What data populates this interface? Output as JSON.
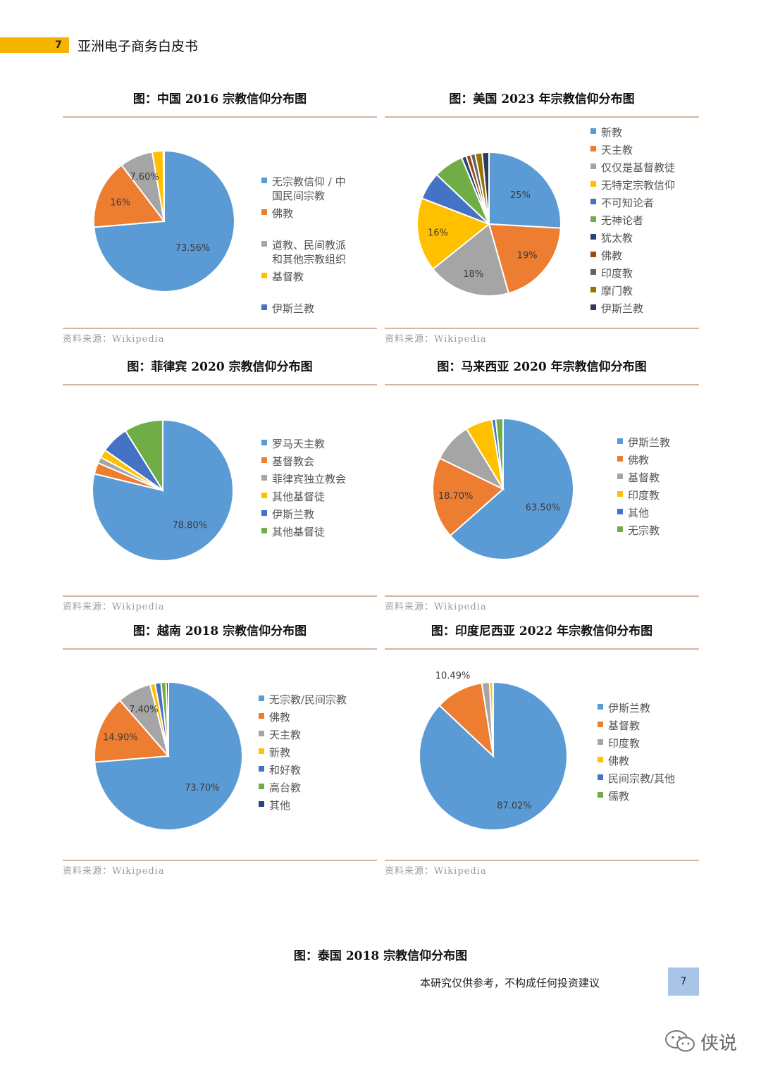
{
  "header": {
    "page_number": "7",
    "title": "亚洲电子商务白皮书"
  },
  "source_label": "资料来源：Wikipedia",
  "palette": [
    "#5b9bd5",
    "#ed7d31",
    "#a5a5a5",
    "#ffc000",
    "#4472c4",
    "#70ad47",
    "#264478",
    "#9e480e",
    "#636363",
    "#997300",
    "#2f3b5c"
  ],
  "chart_data": [
    {
      "type": "pie",
      "title": "图：中国 2016 宗教信仰分布图",
      "labels": [
        "无宗教信仰 / 中\n国民间宗教",
        "佛教",
        "道教、民间教派\n和其他宗教组织",
        "基督教",
        "伊斯兰教"
      ],
      "values": [
        73.56,
        16,
        7.6,
        2.53,
        0.2
      ],
      "data_labels": [
        "73.56%",
        "16%",
        "7.60%",
        "",
        ""
      ],
      "legend": "right"
    },
    {
      "type": "pie",
      "title": "图：美国 2023 年宗教信仰分布图",
      "labels": [
        "新教",
        "天主教",
        "仅仅是基督教徒",
        "无特定宗教信仰",
        "不可知论者",
        "无神论者",
        "犹太教",
        "佛教",
        "印度教",
        "摩门教",
        "伊斯兰教"
      ],
      "values": [
        25,
        19,
        18,
        16,
        6,
        6.5,
        1,
        1,
        1,
        1.5,
        1.5
      ],
      "data_labels": [
        "25%",
        "19%",
        "18%",
        "16%",
        "",
        "",
        "",
        "",
        "",
        "",
        ""
      ],
      "legend": "right"
    },
    {
      "type": "pie",
      "title": "图：菲律宾 2020 宗教信仰分布图",
      "labels": [
        "罗马天主教",
        "基督教会",
        "菲律宾独立教会",
        "其他基督徒",
        "伊斯兰教",
        "其他基督徒"
      ],
      "values": [
        78.8,
        2.6,
        1.4,
        1.9,
        6.4,
        8.9
      ],
      "data_labels": [
        "78.80%",
        "",
        "",
        "",
        "",
        ""
      ],
      "legend": "right"
    },
    {
      "type": "pie",
      "title": "图：马来西亚 2020 年宗教信仰分布图",
      "labels": [
        "伊斯兰教",
        "佛教",
        "基督教",
        "印度教",
        "其他",
        "无宗教"
      ],
      "values": [
        63.5,
        18.7,
        9.1,
        6.1,
        0.9,
        1.7
      ],
      "data_labels": [
        "63.50%",
        "18.70%",
        "",
        "",
        "",
        ""
      ],
      "legend": "right"
    },
    {
      "type": "pie",
      "title": "图：越南 2018 宗教信仰分布图",
      "labels": [
        "无宗教/民间宗教",
        "佛教",
        "天主教",
        "新教",
        "和好教",
        "高台教",
        "其他"
      ],
      "values": [
        73.7,
        14.9,
        7.4,
        1.1,
        1.3,
        1.1,
        0.5
      ],
      "data_labels": [
        "73.70%",
        "14.90%",
        "7.40%",
        "",
        "",
        "",
        ""
      ],
      "legend": "right"
    },
    {
      "type": "pie",
      "title": "图：印度尼西亚 2022 年宗教信仰分布图",
      "labels": [
        "伊斯兰教",
        "基督教",
        "印度教",
        "佛教",
        "民间宗教/其他",
        "儒教"
      ],
      "values": [
        87.02,
        10.49,
        1.69,
        0.72,
        0.05,
        0.03
      ],
      "data_labels": [
        "87.02%",
        "10.49%",
        "",
        "",
        "",
        ""
      ],
      "legend": "right"
    }
  ],
  "bottom_title": "图：泰国 2018 宗教信仰分布图",
  "footer": {
    "disclaimer": "本研究仅供参考，不构成任何投资建议",
    "page_number": "7"
  },
  "watermark": {
    "icon": "wechat-icon",
    "text": "侠说"
  }
}
